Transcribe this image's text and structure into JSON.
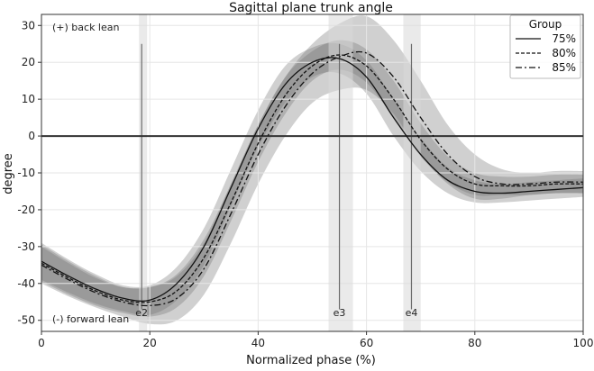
{
  "chart_data": {
    "type": "line",
    "title": "Sagittal plane trunk angle",
    "xlabel": "Normalized phase (%)",
    "ylabel": "degree",
    "xlim": [
      0,
      100
    ],
    "ylim": [
      -53,
      33
    ],
    "xticks": [
      0,
      20,
      40,
      60,
      80,
      100
    ],
    "yticks": [
      -50,
      -40,
      -30,
      -20,
      -10,
      0,
      10,
      20,
      30
    ],
    "grid": true,
    "legend": {
      "title": "Group",
      "placement": "top-right"
    },
    "annotations": {
      "top_left": "(+) back lean",
      "bottom_left": "(-) forward lean"
    },
    "event_markers": [
      {
        "label": "e2",
        "x": 18.5,
        "band": [
          18,
          19.5
        ]
      },
      {
        "label": "e3",
        "x": 55,
        "band": [
          53,
          57.5
        ]
      },
      {
        "label": "e4",
        "x": 68.3,
        "band": [
          66.8,
          70
        ]
      }
    ],
    "reference_line_y": 0,
    "x": [
      0,
      5,
      10,
      15,
      20,
      25,
      30,
      35,
      40,
      45,
      50,
      55,
      60,
      65,
      70,
      75,
      80,
      85,
      90,
      95,
      100
    ],
    "series": [
      {
        "name": "75%",
        "dash": "solid",
        "values": [
          -34,
          -38,
          -41.5,
          -44,
          -44.5,
          -40,
          -30,
          -14,
          2,
          14,
          20,
          21,
          16,
          5,
          -5,
          -12,
          -15,
          -15.5,
          -15,
          -14.5,
          -14
        ],
        "sd": [
          5,
          4.5,
          4,
          3.5,
          4,
          4.5,
          5,
          5,
          5,
          5,
          4,
          4,
          4.5,
          5,
          4.5,
          3.5,
          3,
          2.5,
          2.5,
          2.5,
          2.5
        ]
      },
      {
        "name": "80%",
        "dash": "dashed",
        "values": [
          -34.5,
          -38.5,
          -42,
          -44.5,
          -45,
          -42,
          -33,
          -18,
          -2,
          11,
          19,
          22,
          19,
          10,
          -1,
          -9,
          -13,
          -13.5,
          -13.5,
          -13,
          -13
        ],
        "sd": [
          5,
          4.5,
          4,
          3.5,
          4,
          4.5,
          5,
          5,
          5,
          5,
          4,
          4,
          4.5,
          5,
          4.5,
          3.5,
          3,
          2.5,
          2.5,
          2.5,
          2.5
        ]
      },
      {
        "name": "85%",
        "dash": "dashdot",
        "values": [
          -35,
          -39,
          -42.5,
          -45,
          -46,
          -44,
          -36,
          -21,
          -5,
          8,
          17,
          21.5,
          22.5,
          16,
          5,
          -5,
          -11,
          -13,
          -13,
          -12.5,
          -12.5
        ],
        "sd": [
          5,
          4.5,
          4,
          4,
          5,
          6,
          7,
          8,
          8,
          8,
          8,
          9,
          10,
          10,
          10,
          8,
          6,
          4,
          3,
          3,
          3
        ]
      }
    ]
  }
}
